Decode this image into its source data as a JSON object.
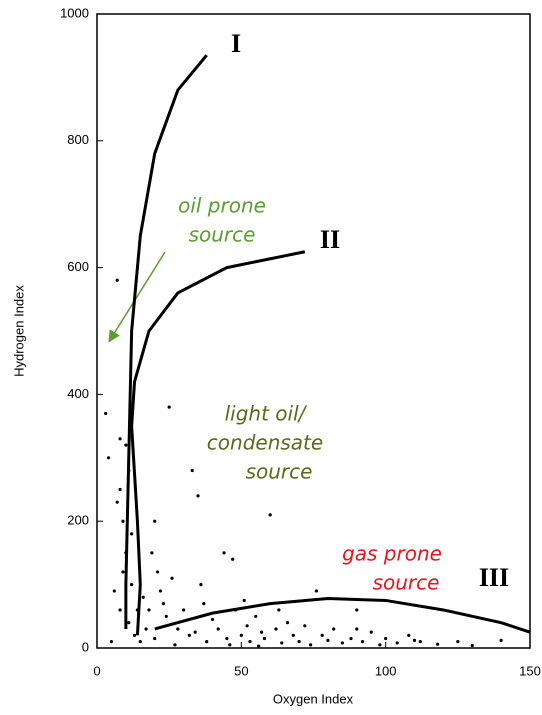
{
  "chart_data": {
    "type": "scatter",
    "xlabel": "Oxygen Index",
    "ylabel": "Hydrogen Index",
    "xlim": [
      0,
      150
    ],
    "ylim": [
      0,
      1000
    ],
    "xticks": [
      0,
      50,
      100,
      150
    ],
    "yticks": [
      0,
      200,
      400,
      600,
      800,
      1000
    ],
    "point_color": "#000000",
    "x": [
      5,
      7,
      6,
      8,
      7,
      8,
      9,
      10,
      11,
      10,
      9,
      12,
      8,
      11,
      13,
      15,
      17,
      18,
      16,
      19,
      20,
      21,
      22,
      24,
      25,
      26,
      28,
      30,
      32,
      33,
      35,
      36,
      38,
      40,
      42,
      44,
      45,
      47,
      48,
      50,
      52,
      53,
      55,
      57,
      58,
      60,
      62,
      64,
      66,
      68,
      70,
      72,
      74,
      76,
      78,
      80,
      82,
      85,
      88,
      90,
      92,
      95,
      98,
      100,
      104,
      108,
      112,
      118,
      125,
      130,
      140,
      3,
      4,
      12,
      14,
      20,
      23,
      27,
      34,
      37,
      46,
      51,
      63,
      56,
      90,
      110
    ],
    "y": [
      10,
      580,
      90,
      330,
      230,
      250,
      200,
      320,
      280,
      150,
      120,
      100,
      60,
      40,
      20,
      10,
      30,
      60,
      80,
      150,
      200,
      120,
      90,
      50,
      380,
      110,
      30,
      60,
      20,
      280,
      240,
      100,
      10,
      45,
      30,
      150,
      15,
      140,
      60,
      20,
      35,
      10,
      50,
      25,
      15,
      210,
      30,
      8,
      40,
      20,
      10,
      35,
      5,
      90,
      20,
      12,
      30,
      8,
      15,
      30,
      10,
      25,
      5,
      15,
      8,
      20,
      10,
      6,
      10,
      4,
      12,
      370,
      300,
      180,
      60,
      15,
      70,
      5,
      25,
      70,
      5,
      75,
      60,
      3,
      60,
      12
    ],
    "curves": [
      {
        "label": "I",
        "color": "#000000",
        "x": [
          10,
          10,
          11,
          12,
          15,
          20,
          28,
          38
        ],
        "y": [
          30,
          100,
          300,
          500,
          650,
          780,
          880,
          935
        ]
      },
      {
        "label": "II",
        "color": "#000000",
        "x": [
          14,
          15,
          14,
          12,
          13,
          18,
          28,
          45,
          72
        ],
        "y": [
          20,
          100,
          200,
          350,
          420,
          500,
          560,
          600,
          625
        ]
      },
      {
        "label": "III",
        "color": "#000000",
        "x": [
          20,
          40,
          60,
          80,
          100,
          120,
          140,
          150
        ],
        "y": [
          30,
          55,
          70,
          78,
          75,
          60,
          40,
          25
        ]
      }
    ],
    "annotations": [
      {
        "lines": [
          "oil prone",
          "source"
        ],
        "color": "#5a9e2f"
      },
      {
        "lines": [
          "light oil/",
          "condensate",
          "source"
        ],
        "color": "#5b6a1a"
      },
      {
        "lines": [
          "gas prone",
          "source"
        ],
        "color": "#e8141a"
      }
    ]
  }
}
